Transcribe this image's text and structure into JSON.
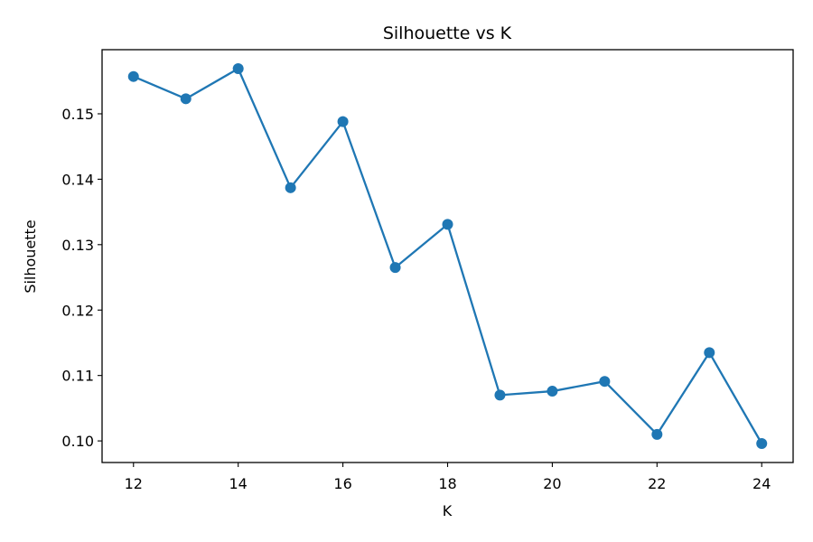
{
  "chart_data": {
    "type": "line",
    "title": "Silhouette vs K",
    "xlabel": "K",
    "ylabel": "Silhouette",
    "x": [
      12,
      13,
      14,
      15,
      16,
      17,
      18,
      19,
      20,
      21,
      22,
      23,
      24
    ],
    "series": [
      {
        "values": [
          0.1557,
          0.1523,
          0.1569,
          0.1387,
          0.1488,
          0.1265,
          0.1331,
          0.107,
          0.1076,
          0.1091,
          0.101,
          0.1135,
          0.0996
        ],
        "color": "#1f77b4",
        "marker": "circle"
      }
    ],
    "xlim": [
      11.4,
      24.6
    ],
    "ylim": [
      0.0967,
      0.1598
    ],
    "xticks": [
      12,
      14,
      16,
      18,
      20,
      22,
      24
    ],
    "xtick_labels": [
      "12",
      "14",
      "16",
      "18",
      "20",
      "22",
      "24"
    ],
    "yticks": [
      0.1,
      0.11,
      0.12,
      0.13,
      0.14,
      0.15
    ],
    "ytick_labels": [
      "0.10",
      "0.11",
      "0.12",
      "0.13",
      "0.14",
      "0.15"
    ],
    "grid": false,
    "legend": false
  }
}
